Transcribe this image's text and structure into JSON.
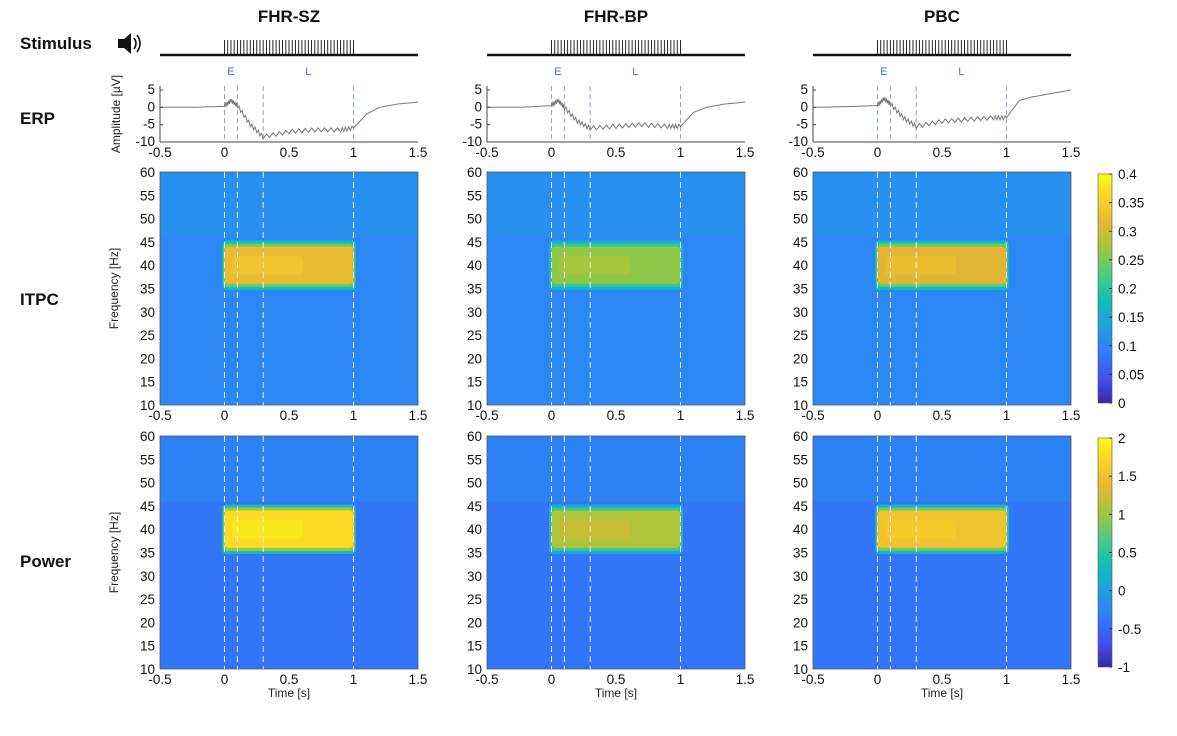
{
  "stimulus_label": "Stimulus",
  "row_labels": {
    "erp": "ERP",
    "itpc": "ITPC",
    "power": "Power"
  },
  "chart_data": {
    "type": "heatmap",
    "conditions": [
      "FHR-SZ",
      "FHR-BP",
      "PBC"
    ],
    "stimulus": {
      "onset": 0,
      "offset": 1
    },
    "markers": [
      {
        "label": "E",
        "from": 0,
        "to": 0.1
      },
      {
        "label": "L",
        "from": 0.3,
        "to": 1
      }
    ],
    "dashed_lines_s": [
      0,
      0.1,
      0.3,
      1
    ],
    "erp": {
      "ylabel": "Amplitude [µV]",
      "xlim": [
        -0.5,
        1.5
      ],
      "ylim": [
        -10,
        5
      ],
      "xticks": [
        -0.5,
        0,
        0.5,
        1,
        1.5
      ],
      "yticks": [
        5,
        0,
        -5,
        -10
      ],
      "time_s": [
        -0.5,
        -0.25,
        0,
        0.05,
        0.1,
        0.2,
        0.3,
        0.5,
        0.7,
        0.9,
        1.0,
        1.1,
        1.2,
        1.35,
        1.5
      ],
      "series": [
        {
          "name": "FHR-SZ",
          "values": [
            0,
            0,
            0.3,
            2,
            0.5,
            -5,
            -8.5,
            -7,
            -6.5,
            -6.5,
            -6,
            -2,
            0,
            1,
            1.5
          ]
        },
        {
          "name": "FHR-BP",
          "values": [
            0,
            0,
            0.5,
            2,
            0,
            -4,
            -6,
            -5.5,
            -5,
            -5.5,
            -5.5,
            -1.5,
            0,
            1,
            1.5
          ]
        },
        {
          "name": "PBC",
          "values": [
            0,
            0.2,
            0.5,
            2.5,
            1,
            -3,
            -5.5,
            -4,
            -3.5,
            -3,
            -3,
            2,
            3,
            4,
            5
          ]
        }
      ]
    },
    "itpc": {
      "ylabel": "Frequency [Hz]",
      "xlim": [
        -0.5,
        1.5
      ],
      "ylim": [
        10,
        60
      ],
      "xticks": [
        -0.5,
        0,
        0.5,
        1,
        1.5
      ],
      "yticks": [
        60,
        55,
        50,
        45,
        40,
        35,
        30,
        25,
        20,
        15,
        10
      ],
      "colorbar": {
        "min": 0,
        "max": 0.4,
        "ticks": [
          "0.4",
          "0.35",
          "0.3",
          "0.25",
          "0.2",
          "0.15",
          "0.1",
          "0.05",
          "0"
        ]
      },
      "background": 0.1,
      "response": [
        {
          "name": "FHR-SZ",
          "band_hz": [
            36,
            44
          ],
          "time_s": [
            0,
            1
          ],
          "peak": 0.32
        },
        {
          "name": "FHR-BP",
          "band_hz": [
            36,
            44
          ],
          "time_s": [
            0,
            1
          ],
          "peak": 0.26
        },
        {
          "name": "PBC",
          "band_hz": [
            36,
            44
          ],
          "time_s": [
            0,
            1
          ],
          "peak": 0.31
        }
      ]
    },
    "power": {
      "ylabel": "Frequency [Hz]",
      "xlabel": "Time [s]",
      "xlim": [
        -0.5,
        1.5
      ],
      "ylim": [
        10,
        60
      ],
      "xticks": [
        -0.5,
        0,
        0.5,
        1,
        1.5
      ],
      "yticks": [
        60,
        55,
        50,
        45,
        40,
        35,
        30,
        25,
        20,
        15,
        10
      ],
      "colorbar": {
        "min": -1,
        "max": 2,
        "ticks": [
          "2",
          "1.5",
          "1",
          "0.5",
          "0",
          "-0.5",
          "-1"
        ]
      },
      "background": -0.4,
      "response": [
        {
          "name": "FHR-SZ",
          "band_hz": [
            36,
            44
          ],
          "time_s": [
            0,
            1
          ],
          "peak": 1.75
        },
        {
          "name": "FHR-BP",
          "band_hz": [
            36,
            44
          ],
          "time_s": [
            0,
            1
          ],
          "peak": 1.1
        },
        {
          "name": "PBC",
          "band_hz": [
            36,
            44
          ],
          "time_s": [
            0,
            1
          ],
          "peak": 1.5
        }
      ]
    },
    "colormap": [
      "#3e26a8",
      "#4352ef",
      "#2f7ef9",
      "#1fa0e3",
      "#12beb9",
      "#48cb86",
      "#9bc83d",
      "#e4b635",
      "#fcd02a",
      "#f9fb15"
    ]
  }
}
